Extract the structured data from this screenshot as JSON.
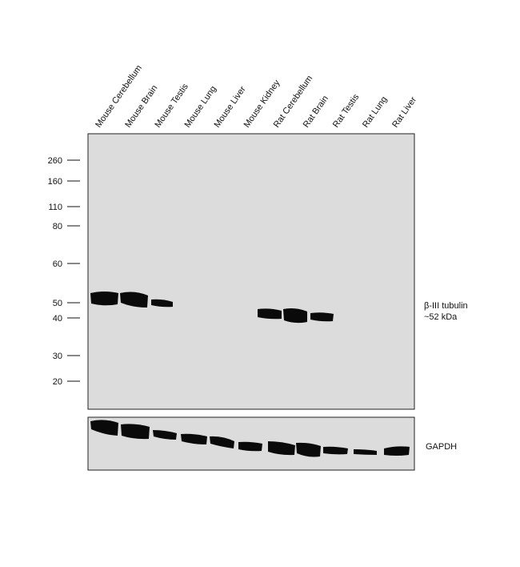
{
  "lanes": [
    "Mouse Cerebellum",
    "Mouse Brain",
    "Mouse Testis",
    "Mouse Lung",
    "Mouse Liver",
    "Mouse Kidney",
    "Rat Cerebellum",
    "Rat Brain",
    "Rat Testis",
    "Rat Lung",
    "Rat Liver"
  ],
  "markers": [
    260,
    160,
    110,
    80,
    60,
    50,
    40,
    30,
    20
  ],
  "target": {
    "name": "β-III tubulin",
    "size": "~52 kDa"
  },
  "loading_control": "GAPDH"
}
